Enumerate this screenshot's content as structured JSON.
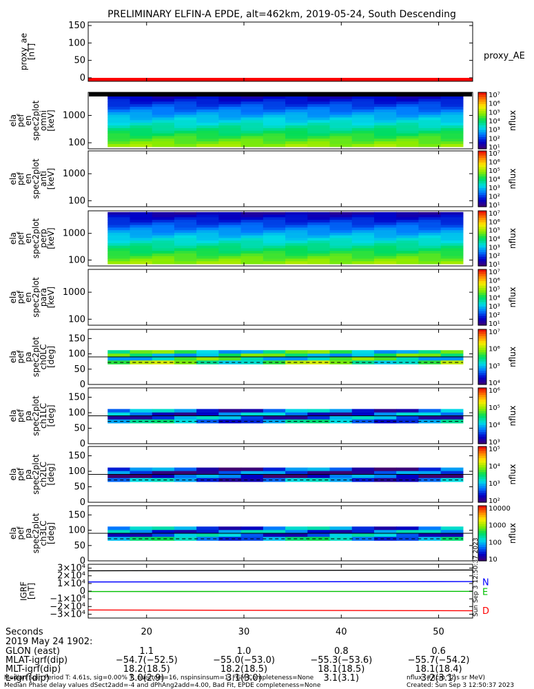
{
  "title": "PRELIMINARY ELFIN-A EPDE, alt=462km, 2019-05-24, South Descending",
  "chart_data": [
    {
      "type": "line",
      "id": "proxy_ae",
      "ylabel_lines": [
        "proxy_ae",
        "[nT]"
      ],
      "legend": [
        "proxy_AE"
      ],
      "ylim": [
        -10,
        160
      ],
      "yticks": [
        "150",
        "100",
        "50",
        "0"
      ],
      "ytick_values": [
        150,
        100,
        50,
        0
      ],
      "series": [
        {
          "name": "proxy_AE",
          "color": "#ff0000",
          "x": [
            14,
            53.5
          ],
          "values": [
            -5,
            -5
          ]
        }
      ]
    },
    {
      "type": "heatmap",
      "id": "energy-spectrogram-1",
      "ylabel_lines": [
        "ela",
        "pef",
        "en",
        "spec2plot",
        "omni",
        "[keV]"
      ],
      "yscale": "log",
      "yticks": [
        "1000",
        "100"
      ],
      "ytick_values": [
        1000,
        100
      ],
      "ylim": [
        60,
        7000
      ],
      "x_extent": [
        16,
        52.5
      ],
      "colorbar_label": "nflux",
      "colorbar_ticks": [
        "10⁷",
        "10⁶",
        "10⁵",
        "10⁴",
        "10³",
        "10²",
        "10¹"
      ]
    },
    {
      "type": "heatmap",
      "id": "energy-spectrogram-2",
      "ylabel_lines": [
        "ela",
        "pef",
        "en",
        "spec2plot",
        "anti",
        "[keV]"
      ],
      "yscale": "log",
      "yticks": [
        "1000",
        "100"
      ],
      "ytick_values": [
        1000,
        100
      ],
      "ylim": [
        60,
        7000
      ],
      "colorbar_label": "nflux",
      "colorbar_ticks": [
        "10⁷",
        "10⁶",
        "10⁵",
        "10⁴",
        "10³",
        "10²",
        "10¹"
      ]
    },
    {
      "type": "heatmap",
      "id": "energy-spectrogram-3",
      "ylabel_lines": [
        "ela",
        "pef",
        "en",
        "spec2plot",
        "perp",
        "[keV]"
      ],
      "yscale": "log",
      "yticks": [
        "1000",
        "100"
      ],
      "ytick_values": [
        1000,
        100
      ],
      "ylim": [
        60,
        7000
      ],
      "x_extent": [
        16,
        52.5
      ],
      "colorbar_label": "nflux",
      "colorbar_ticks": [
        "10⁷",
        "10⁶",
        "10⁵",
        "10⁴",
        "10³",
        "10²",
        "10¹"
      ]
    },
    {
      "type": "heatmap",
      "id": "energy-spectrogram-4",
      "ylabel_lines": [
        "ela",
        "pef",
        "en",
        "spec2plot",
        "para",
        "[keV]"
      ],
      "yscale": "log",
      "yticks": [
        "1000",
        "100"
      ],
      "ytick_values": [
        1000,
        100
      ],
      "ylim": [
        60,
        7000
      ],
      "colorbar_label": "nflux",
      "colorbar_ticks": [
        "10⁷",
        "10⁶",
        "10⁵",
        "10⁴",
        "10³",
        "10²",
        "10¹"
      ]
    },
    {
      "type": "heatmap",
      "id": "pitch-angle-ch0",
      "ylabel_lines": [
        "ela",
        "pef",
        "pa",
        "spec2plot",
        "ch0LC",
        "[deg]"
      ],
      "yticks": [
        "150",
        "100",
        "50",
        "0"
      ],
      "ytick_values": [
        150,
        100,
        50,
        0
      ],
      "ylim": [
        0,
        180
      ],
      "x_extent": [
        16,
        52.5
      ],
      "pa_extent": [
        67,
        112
      ],
      "colorbar_label": "nflux",
      "colorbar_ticks": [
        "10⁷",
        "10⁶",
        "10⁵",
        "10⁴"
      ]
    },
    {
      "type": "heatmap",
      "id": "pitch-angle-ch1",
      "ylabel_lines": [
        "ela",
        "pef",
        "pa",
        "spec2plot",
        "ch1LC",
        "[deg]"
      ],
      "yticks": [
        "150",
        "100",
        "50",
        "0"
      ],
      "ytick_values": [
        150,
        100,
        50,
        0
      ],
      "ylim": [
        0,
        180
      ],
      "x_extent": [
        16,
        52.5
      ],
      "pa_extent": [
        67,
        112
      ],
      "colorbar_label": "nflux",
      "colorbar_ticks": [
        "10⁶",
        "10⁵",
        "10⁴",
        "10³"
      ]
    },
    {
      "type": "heatmap",
      "id": "pitch-angle-ch2",
      "ylabel_lines": [
        "ela",
        "pef",
        "pa",
        "spec2plot",
        "ch2LC",
        "[deg]"
      ],
      "yticks": [
        "150",
        "100",
        "50",
        "0"
      ],
      "ytick_values": [
        150,
        100,
        50,
        0
      ],
      "ylim": [
        0,
        180
      ],
      "x_extent": [
        16,
        52.5
      ],
      "pa_extent": [
        67,
        112
      ],
      "colorbar_label": "nflux",
      "colorbar_ticks": [
        "10⁵",
        "10⁴",
        "10³",
        "10²"
      ]
    },
    {
      "type": "heatmap",
      "id": "pitch-angle-ch3",
      "ylabel_lines": [
        "ela",
        "pef",
        "pa",
        "spec2plot",
        "ch3LC",
        "[deg]"
      ],
      "yticks": [
        "150",
        "100",
        "50",
        "0"
      ],
      "ytick_values": [
        150,
        100,
        50,
        0
      ],
      "ylim": [
        0,
        180
      ],
      "x_extent": [
        16,
        52.5
      ],
      "pa_extent": [
        67,
        112
      ],
      "colorbar_label": "nflux",
      "colorbar_ticks": [
        "10000",
        "1000",
        "100",
        "10"
      ]
    },
    {
      "type": "line",
      "id": "igrf",
      "ylabel_lines": [
        "IGRF",
        "[nT]"
      ],
      "yticks": [
        "3×10⁴",
        "2×10⁴",
        "1×10⁴",
        "0",
        "−1×10⁴",
        "−2×10⁴",
        "−3×10⁴"
      ],
      "ytick_values": [
        30000,
        20000,
        10000,
        0,
        -10000,
        -20000,
        -30000
      ],
      "ylim": [
        -35000,
        35000
      ],
      "legend": [
        "N",
        "E",
        "D"
      ],
      "series": [
        {
          "name": "N",
          "color": "#0000ff",
          "x": [
            14,
            53.5
          ],
          "values": [
            12000,
            12500
          ]
        },
        {
          "name": "E",
          "color": "#00c000",
          "x": [
            14,
            53.5
          ],
          "values": [
            -500,
            -300
          ]
        },
        {
          "name": "D",
          "color": "#ff0000",
          "x": [
            14,
            53.5
          ],
          "values": [
            -24500,
            -25500
          ]
        },
        {
          "name": "",
          "color": "#000000",
          "x": [
            14,
            53.5
          ],
          "values": [
            26500,
            27500
          ]
        }
      ]
    }
  ],
  "xaxis": {
    "ticks": [
      "20",
      "30",
      "40",
      "50"
    ],
    "tick_values": [
      20,
      30,
      40,
      50
    ],
    "xlim": [
      14,
      53.5
    ]
  },
  "annotation": {
    "rows": [
      {
        "label": "Seconds",
        "values": [
          "20",
          "30",
          "40",
          "50"
        ]
      },
      {
        "label": "2019 May 24 1902:",
        "values": [
          "",
          "",
          "",
          ""
        ]
      },
      {
        "label": "GLON (east)",
        "values": [
          "1.1",
          "1.0",
          "0.8",
          "0.6"
        ]
      },
      {
        "label": "MLAT-igrf(dip)",
        "values": [
          "−54.7(−52.5)",
          "−55.0(−53.0)",
          "−55.3(−53.6)",
          "−55.7(−54.2)"
        ]
      },
      {
        "label": "MLT-igrf(dip)",
        "values": [
          "18.2(18.5)",
          "18.2(18.5)",
          "18.1(18.5)",
          "18.1(18.4)"
        ]
      },
      {
        "label": "L-igrf(dip)",
        "values": [
          "3.0(2.9)",
          "3.1(3.0)",
          "3.1(3.1)",
          "3.2(3.1)"
        ]
      }
    ]
  },
  "footer": {
    "line1": "Median Spin Period T: 4.61s, sig=0.00% T, nsectors=16, nspinsinsum=1, FGM Completeness=None",
    "line2": "Median Phase delay values dSect2add=-4 and dPhAng2add=4.00, Bad Fit, EPDE completeness=None",
    "units": "nflux: #/(cm^2 s sr MeV)",
    "created": "Created: Sun Sep  3 12:50:37 2023",
    "vertical_stamp": "Sun Sep  3 12:50:37 2023"
  }
}
